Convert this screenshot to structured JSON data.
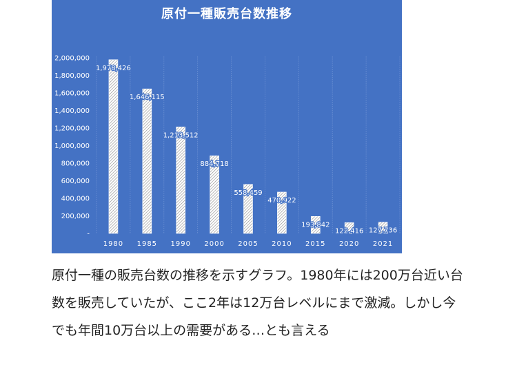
{
  "chart_data": {
    "type": "bar",
    "title": "原付一種販売台数推移",
    "categories": [
      "1980",
      "1985",
      "1990",
      "2000",
      "2005",
      "2010",
      "2015",
      "2020",
      "2021"
    ],
    "values": [
      1978426,
      1646115,
      1213512,
      884718,
      558459,
      470922,
      193842,
      122416,
      127736
    ],
    "data_labels": [
      "1,978,426",
      "1,646,115",
      "1,213,512",
      "884,718",
      "558,459",
      "470,922",
      "193,842",
      "122,416",
      "127,736"
    ],
    "yticks": [
      "-",
      "200,000",
      "400,000",
      "600,000",
      "800,000",
      "1,000,000",
      "1,200,000",
      "1,400,000",
      "1,600,000",
      "1,800,000",
      "2,000,000"
    ],
    "ylim": [
      0,
      2000000
    ],
    "grid": true,
    "background_color": "#4472c4",
    "bar_color": "#ffffff"
  },
  "caption": "原付一種の販売台数の推移を示すグラフ。1980年には200万台近い台数を販売していたが、ここ2年は12万台レベルにまで激減。しかし今でも年間10万台以上の需要がある…とも言える"
}
